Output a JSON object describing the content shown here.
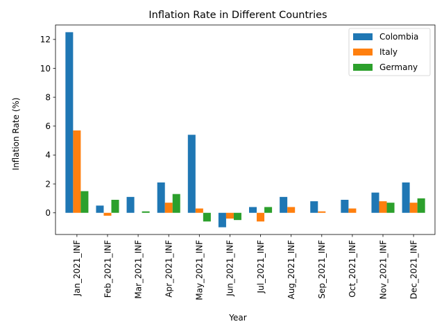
{
  "chart_data": {
    "type": "bar",
    "title": "Inflation Rate in Different Countries",
    "xlabel": "Year",
    "ylabel": "Inflation Rate (%)",
    "categories": [
      "Jan_2021_INF",
      "Feb_2021_INF",
      "Mar_2021_INF",
      "Apr_2021_INF",
      "May_2021_INF",
      "Jun_2021_INF",
      "Jul_2021_INF",
      "Aug_2021_INF",
      "Sep_2021_INF",
      "Oct_2021_INF",
      "Nov_2021_INF",
      "Dec_2021_INF"
    ],
    "series": [
      {
        "name": "Colombia",
        "color": "#1f77b4",
        "values": [
          12.5,
          0.5,
          1.1,
          2.1,
          5.4,
          -1.0,
          0.4,
          1.1,
          0.8,
          0.9,
          1.4,
          2.1
        ]
      },
      {
        "name": "Italy",
        "color": "#ff7f0e",
        "values": [
          5.7,
          -0.2,
          0.0,
          0.7,
          0.3,
          -0.4,
          -0.6,
          0.4,
          0.1,
          0.3,
          0.8,
          0.7
        ]
      },
      {
        "name": "Germany",
        "color": "#2ca02c",
        "values": [
          1.5,
          0.9,
          0.1,
          1.3,
          -0.6,
          -0.5,
          0.4,
          0.0,
          0.0,
          0.0,
          0.7,
          1.0
        ]
      }
    ],
    "ylim": [
      -1.5,
      13.0
    ],
    "yticks": [
      0,
      2,
      4,
      6,
      8,
      10,
      12
    ],
    "grid": false,
    "legend_position": "top-right"
  }
}
